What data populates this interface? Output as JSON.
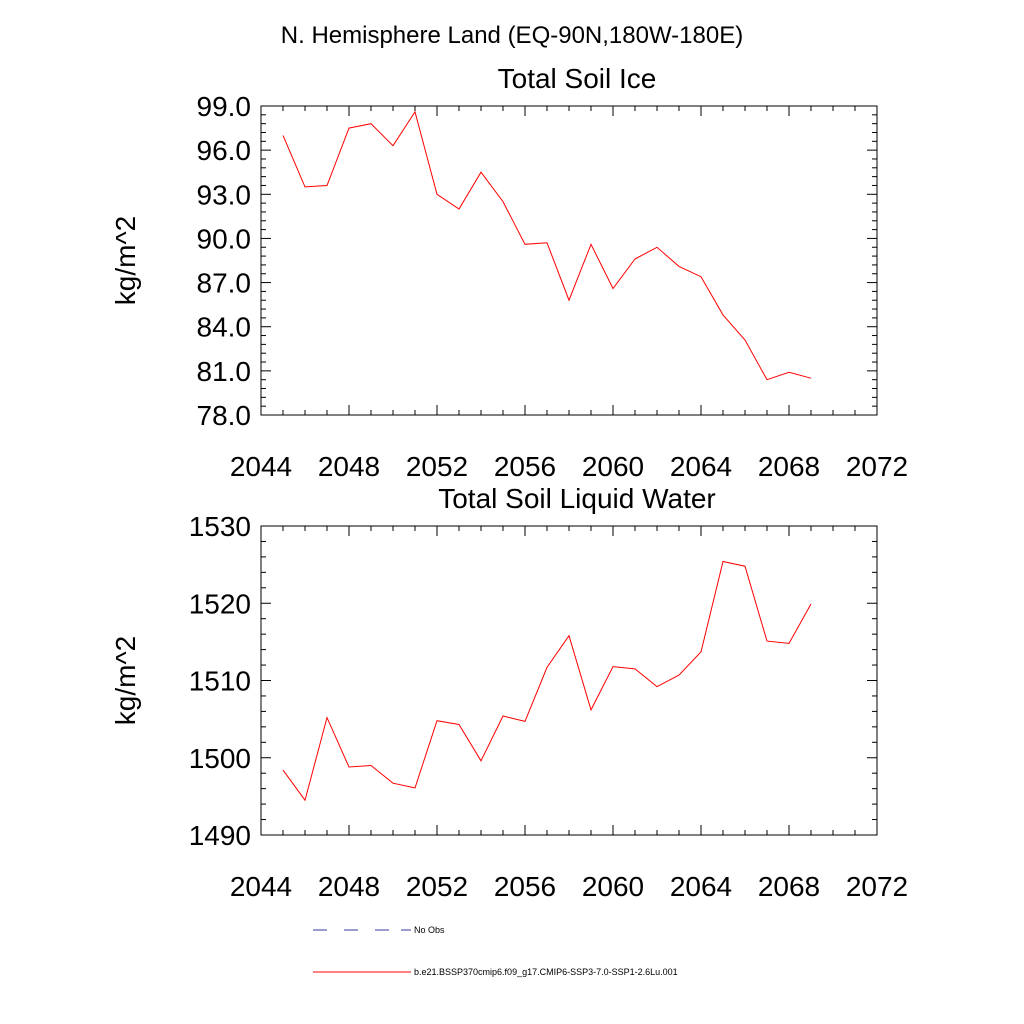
{
  "header": {
    "region_title": "N. Hemisphere Land (EQ-90N,180W-180E)"
  },
  "chart_data": [
    {
      "type": "line",
      "title": "Total Soil Ice",
      "ylabel": "kg/m^2",
      "xlabel": "",
      "xlim": [
        2044,
        2072
      ],
      "ylim": [
        78,
        99
      ],
      "x_ticks": [
        2044,
        2048,
        2052,
        2056,
        2060,
        2064,
        2068,
        2072
      ],
      "x_tick_labels": [
        "2044",
        "2048",
        "2052",
        "2056",
        "2060",
        "2064",
        "2068",
        "2072"
      ],
      "y_ticks": [
        78,
        81,
        84,
        87,
        90,
        93,
        96,
        99
      ],
      "y_tick_labels": [
        "78.0",
        "81.0",
        "84.0",
        "87.0",
        "90.0",
        "93.0",
        "96.0",
        "99.0"
      ],
      "series": [
        {
          "name": "b.e21.BSSP370cmip6.f09_g17.CMIP6-SSP3-7.0-SSP1-2.6Lu.001",
          "color": "#ff0000",
          "x": [
            2045,
            2046,
            2047,
            2048,
            2049,
            2050,
            2051,
            2052,
            2053,
            2054,
            2055,
            2056,
            2057,
            2058,
            2059,
            2060,
            2061,
            2062,
            2063,
            2064,
            2065,
            2066,
            2067,
            2068,
            2069
          ],
          "values": [
            97.0,
            93.5,
            93.6,
            97.5,
            97.8,
            96.3,
            98.6,
            93.0,
            92.0,
            94.5,
            92.5,
            89.6,
            89.7,
            85.8,
            89.6,
            86.6,
            88.6,
            89.4,
            88.1,
            87.4,
            84.8,
            83.1,
            80.4,
            80.9,
            80.5
          ]
        }
      ]
    },
    {
      "type": "line",
      "title": "Total Soil Liquid Water",
      "ylabel": "kg/m^2",
      "xlabel": "",
      "xlim": [
        2044,
        2072
      ],
      "ylim": [
        1490,
        1530
      ],
      "x_ticks": [
        2044,
        2048,
        2052,
        2056,
        2060,
        2064,
        2068,
        2072
      ],
      "x_tick_labels": [
        "2044",
        "2048",
        "2052",
        "2056",
        "2060",
        "2064",
        "2068",
        "2072"
      ],
      "y_ticks": [
        1490,
        1500,
        1510,
        1520,
        1530
      ],
      "y_tick_labels": [
        "1490",
        "1500",
        "1510",
        "1520",
        "1530"
      ],
      "series": [
        {
          "name": "b.e21.BSSP370cmip6.f09_g17.CMIP6-SSP3-7.0-SSP1-2.6Lu.001",
          "color": "#ff0000",
          "x": [
            2045,
            2046,
            2047,
            2048,
            2049,
            2050,
            2051,
            2052,
            2053,
            2054,
            2055,
            2056,
            2057,
            2058,
            2059,
            2060,
            2061,
            2062,
            2063,
            2064,
            2065,
            2066,
            2067,
            2068,
            2069
          ],
          "values": [
            1498.4,
            1494.5,
            1505.2,
            1498.8,
            1499.0,
            1496.7,
            1496.1,
            1504.8,
            1504.3,
            1499.6,
            1505.4,
            1504.7,
            1511.7,
            1515.8,
            1506.2,
            1511.8,
            1511.5,
            1509.2,
            1510.7,
            1513.7,
            1525.4,
            1524.8,
            1515.1,
            1514.8,
            1519.9
          ]
        }
      ]
    }
  ],
  "legend": {
    "placement": "bottom",
    "entries": [
      {
        "label": "No Obs",
        "color": "#3a3aa0",
        "style": "dashed"
      },
      {
        "label": "b.e21.BSSP370cmip6.f09_g17.CMIP6-SSP3-7.0-SSP1-2.6Lu.001",
        "color": "#ff0000",
        "style": "solid"
      }
    ]
  }
}
